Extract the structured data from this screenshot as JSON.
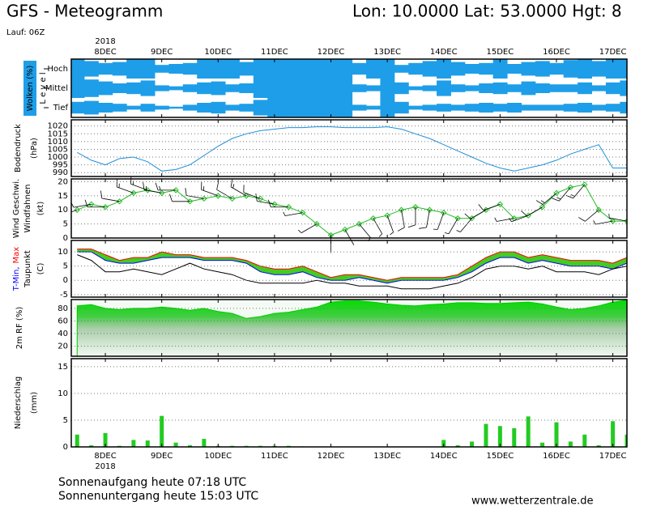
{
  "header": {
    "title": "GFS - Meteogramm",
    "coords": "Lon: 10.0000 Lat: 53.0000 Hgt: 8",
    "run": "Lauf: 06Z"
  },
  "time_axis": {
    "year": "2018",
    "x": [
      -12,
      -6,
      0,
      6,
      12,
      18,
      24,
      30,
      36,
      42,
      48,
      54,
      60,
      66,
      72,
      78,
      84,
      90,
      96,
      102,
      108,
      114,
      120,
      126,
      132,
      138,
      144,
      150,
      156,
      162,
      168,
      174,
      180,
      186,
      192,
      198,
      204,
      210,
      216,
      222
    ],
    "xlim": [
      -14.5,
      222
    ],
    "xticks": [
      {
        "value": 0,
        "label": "8DEC"
      },
      {
        "value": 24,
        "label": "9DEC"
      },
      {
        "value": 48,
        "label": "10DEC"
      },
      {
        "value": 72,
        "label": "11DEC"
      },
      {
        "value": 96,
        "label": "12DEC"
      },
      {
        "value": 120,
        "label": "13DEC"
      },
      {
        "value": 144,
        "label": "14DEC"
      },
      {
        "value": 168,
        "label": "15DEC"
      },
      {
        "value": 192,
        "label": "16DEC"
      },
      {
        "value": 216,
        "label": "17DEC"
      }
    ]
  },
  "chart_data": [
    {
      "type": "heatmap",
      "title": "Wolken (%)",
      "ylabel": "L e v e l",
      "color": "#1e9ee8",
      "levels": [
        "Hoch",
        "Mittel",
        "Tief"
      ],
      "values": [
        [
          100,
          80,
          60,
          70,
          100,
          100,
          40,
          50,
          60,
          100,
          100,
          100,
          70,
          100,
          100,
          100,
          100,
          100,
          100,
          100,
          60,
          100,
          100,
          40,
          60,
          80,
          100,
          70,
          50,
          60,
          100,
          50,
          70,
          80,
          60,
          90,
          100,
          80,
          100,
          100
        ],
        [
          100,
          90,
          70,
          50,
          60,
          80,
          30,
          20,
          40,
          60,
          70,
          40,
          50,
          100,
          100,
          100,
          100,
          100,
          100,
          100,
          40,
          30,
          100,
          60,
          20,
          30,
          80,
          40,
          30,
          50,
          60,
          40,
          70,
          50,
          40,
          40,
          60,
          30,
          60,
          80
        ],
        [
          60,
          70,
          50,
          40,
          20,
          40,
          20,
          10,
          30,
          50,
          60,
          30,
          40,
          80,
          100,
          100,
          100,
          100,
          100,
          100,
          30,
          20,
          100,
          60,
          20,
          30,
          40,
          30,
          40,
          50,
          40,
          50,
          30,
          30,
          30,
          40,
          50,
          30,
          40,
          60
        ]
      ]
    },
    {
      "type": "line",
      "ylabel": "Bodendruck",
      "yunit": "(hPa)",
      "grid": true,
      "ylim": [
        987.5,
        1024
      ],
      "yticks": [
        990,
        995,
        1000,
        1005,
        1010,
        1015,
        1020
      ],
      "series": [
        {
          "name": "Bodendruck",
          "color": "#1e90d8",
          "values": [
            1003,
            998,
            995,
            999,
            1000,
            997,
            991,
            992,
            995,
            1001,
            1007,
            1012,
            1015,
            1017,
            1018,
            1019,
            1019,
            1019.5,
            1019.5,
            1019,
            1019,
            1019,
            1019.5,
            1018,
            1015,
            1012,
            1008,
            1004,
            1000,
            996,
            993,
            991,
            993,
            995,
            998,
            1002,
            1005,
            1008,
            993,
            993
          ]
        }
      ]
    },
    {
      "type": "line",
      "yunit": "(kt)",
      "grid": true,
      "ylim": [
        0,
        21
      ],
      "yticks": [
        0,
        5,
        10,
        15,
        20
      ],
      "series": [
        {
          "name": "Wind Geschwi.",
          "color": "#22bb22",
          "marker": "diamond",
          "values": [
            10,
            12,
            11,
            13,
            16,
            17,
            16,
            17,
            13,
            14,
            15,
            14,
            15,
            14,
            12,
            11,
            9,
            5,
            1,
            3,
            5,
            7,
            8,
            10,
            11,
            10,
            9,
            7,
            7,
            10,
            12,
            7,
            8,
            11,
            16,
            18,
            19,
            10,
            6,
            6
          ]
        },
        {
          "name": "Windfahnen",
          "color": "#000000",
          "directions": [
            250,
            260,
            270,
            280,
            290,
            290,
            280,
            270,
            270,
            280,
            290,
            300,
            300,
            290,
            280,
            270,
            260,
            240,
            180,
            150,
            140,
            150,
            160,
            170,
            180,
            190,
            200,
            210,
            220,
            240,
            250,
            260,
            250,
            240,
            230,
            220,
            220,
            230,
            260,
            280
          ]
        }
      ]
    },
    {
      "type": "line",
      "yunit": "(C)",
      "grid": true,
      "band_color": "#44cc22",
      "ylim": [
        -5.9,
        14
      ],
      "yticks": [
        -5,
        0,
        5,
        10
      ],
      "series": [
        {
          "name": "T-Min,",
          "color": "#0000ff",
          "values": [
            10,
            10,
            7,
            6,
            6,
            7,
            8,
            8,
            8,
            7,
            7,
            7,
            6,
            3,
            2,
            2,
            3,
            1,
            0,
            0,
            1,
            0,
            -1,
            0,
            0,
            0,
            0,
            1,
            3,
            6,
            8,
            8,
            6,
            7,
            6,
            5,
            5,
            5,
            4,
            6
          ]
        },
        {
          "name": "Max",
          "color": "#ff0000",
          "values": [
            11,
            11,
            9,
            7,
            8,
            8,
            10,
            9,
            9,
            8,
            8,
            8,
            7,
            5,
            4,
            4,
            5,
            3,
            1,
            2,
            2,
            1,
            0,
            1,
            1,
            1,
            1,
            2,
            5,
            8,
            10,
            10,
            8,
            9,
            8,
            7,
            7,
            7,
            6,
            8
          ]
        },
        {
          "name": "Taupunkt",
          "color": "#000000",
          "values": [
            9,
            7,
            3,
            3,
            4,
            3,
            2,
            4,
            6,
            4,
            3,
            2,
            0,
            -1,
            -1,
            -1,
            -1,
            0,
            -1,
            -1,
            -2,
            -2,
            -2,
            -3,
            -3,
            -3,
            -2,
            -1,
            1,
            4,
            5,
            5,
            4,
            5,
            3,
            3,
            3,
            2,
            4,
            5
          ]
        }
      ]
    },
    {
      "type": "area",
      "ylabel": "2m RF (%)",
      "color": "#00cc00",
      "grid": true,
      "ylim": [
        4,
        94
      ],
      "yticks": [
        20,
        40,
        60,
        80
      ],
      "values": [
        84,
        86,
        80,
        78,
        80,
        80,
        82,
        80,
        77,
        80,
        75,
        72,
        64,
        67,
        72,
        74,
        78,
        82,
        90,
        92,
        92,
        90,
        87,
        85,
        84,
        86,
        87,
        89,
        89,
        88,
        88,
        89,
        90,
        87,
        82,
        78,
        80,
        84,
        90,
        93
      ]
    },
    {
      "type": "bar",
      "ylabel": "Niederschlag",
      "yunit": "(mm)",
      "color": "#22cc22",
      "grid": true,
      "ylim": [
        0,
        16.5
      ],
      "yticks": [
        0,
        5,
        10,
        15
      ],
      "values": [
        2.3,
        0.3,
        2.6,
        0.2,
        1.3,
        1.2,
        5.8,
        0.8,
        0.3,
        1.5,
        0.2,
        0.2,
        0.2,
        0.2,
        0.2,
        0.2,
        0.1,
        0,
        0,
        0,
        0,
        0,
        0,
        0,
        0,
        0,
        1.3,
        0.3,
        1.0,
        4.3,
        3.9,
        3.5,
        5.7,
        0.8,
        4.6,
        1.0,
        2.3,
        0.3,
        4.8,
        2.3
      ]
    }
  ],
  "footer": {
    "sunrise": "Sonnenaufgang heute 07:18 UTC",
    "sunset": "Sonnenuntergang heute 15:03 UTC",
    "source": "www.wetterzentrale.de"
  }
}
